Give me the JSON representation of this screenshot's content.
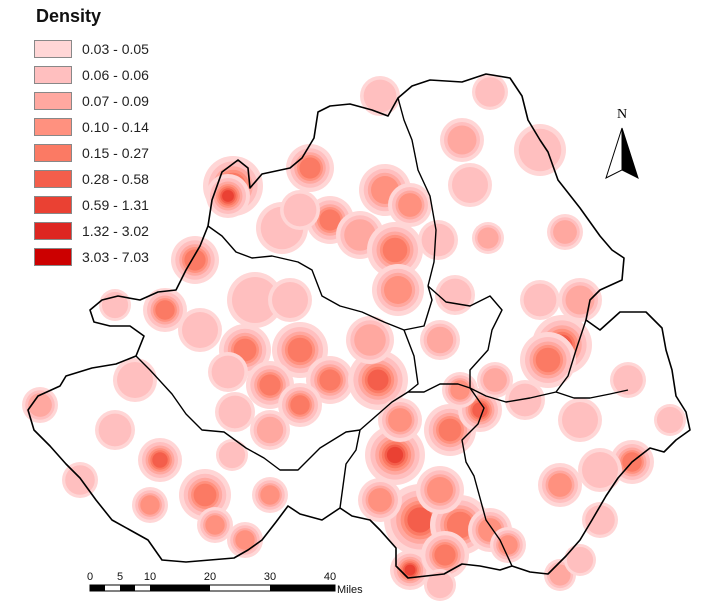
{
  "legend": {
    "title": "Density",
    "items": [
      {
        "label": "0.03 - 0.05",
        "color": "#ffd6d6"
      },
      {
        "label": "0.06 - 0.06",
        "color": "#ffbfbf"
      },
      {
        "label": "0.07 - 0.09",
        "color": "#ffa8a0"
      },
      {
        "label": "0.10 - 0.14",
        "color": "#ff917f"
      },
      {
        "label": "0.15 - 0.27",
        "color": "#fb7a64"
      },
      {
        "label": "0.28 - 0.58",
        "color": "#f45e4b"
      },
      {
        "label": "0.59 - 1.31",
        "color": "#ea4133"
      },
      {
        "label": "1.32 - 3.02",
        "color": "#dd2621"
      },
      {
        "label": "3.03 - 7.03",
        "color": "#cc0000"
      }
    ]
  },
  "north_arrow": {
    "label": "N"
  },
  "scale_bar": {
    "ticks": [
      "0",
      "5",
      "10",
      "20",
      "30",
      "40"
    ],
    "unit": "Miles"
  }
}
